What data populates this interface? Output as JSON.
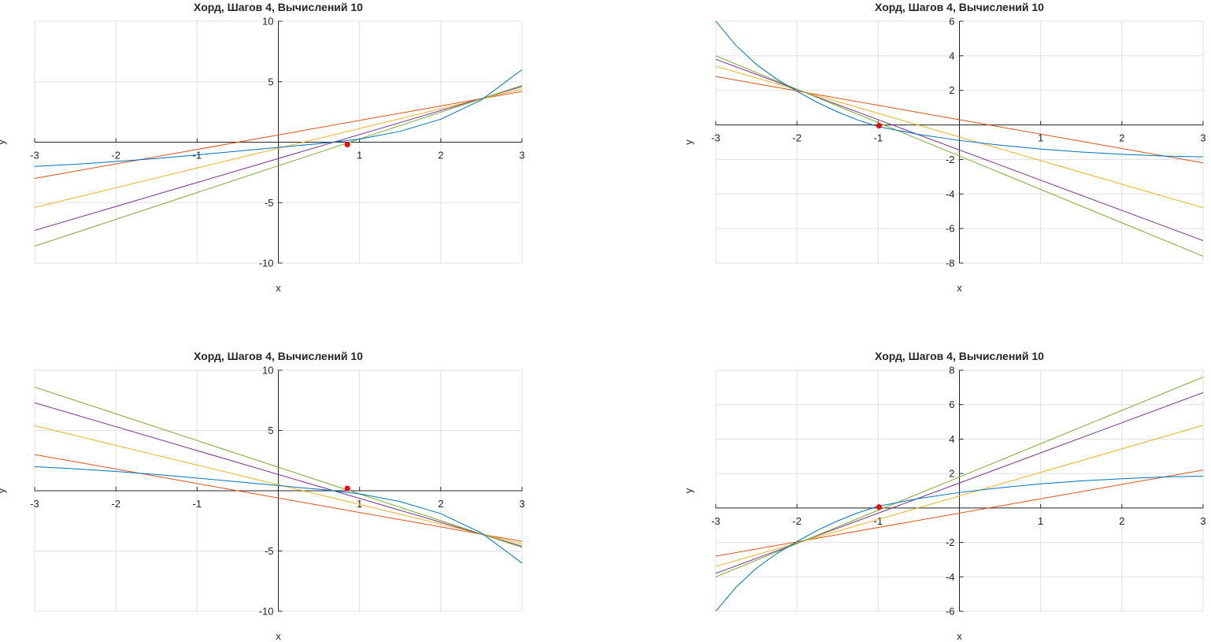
{
  "colors": {
    "curve": "#0072BD",
    "chord1": "#D95319",
    "chord2": "#EDB120",
    "chord3": "#7E2F8E",
    "chord4": "#77AC30",
    "root": "#ff0000",
    "grid": "#e0e0e0",
    "axis": "#262626"
  },
  "chart_data": [
    {
      "type": "line",
      "title": "Хорд, Шагов 4, Вычислений 10",
      "xlabel": "x",
      "ylabel": "y",
      "xlim": [
        -3,
        3
      ],
      "ylim": [
        -10,
        10
      ],
      "grid": true,
      "xticks": [
        -3,
        -2,
        -1,
        1,
        2,
        3
      ],
      "xtick_labels": [
        "-3",
        "-2",
        "-1",
        "1",
        "2",
        "3"
      ],
      "yticks": [
        -10,
        -5,
        5,
        10
      ],
      "ytick_labels": [
        "-10",
        "-5",
        "5",
        "10"
      ],
      "curve": {
        "x": [
          -3,
          -2.5,
          -2,
          -1.5,
          -1,
          -0.5,
          0,
          0.5,
          1,
          1.5,
          2,
          2.5,
          3
        ],
        "y": [
          -2.0,
          -1.82,
          -1.6,
          -1.35,
          -1.05,
          -0.74,
          -0.43,
          -0.12,
          0.25,
          0.9,
          1.9,
          3.5,
          6.0
        ]
      },
      "chords": [
        {
          "x": [
            -3,
            3
          ],
          "y": [
            -3.0,
            4.2
          ]
        },
        {
          "x": [
            -3,
            3
          ],
          "y": [
            -5.4,
            4.4
          ]
        },
        {
          "x": [
            -3,
            3
          ],
          "y": [
            -7.3,
            4.6
          ]
        },
        {
          "x": [
            -3,
            3
          ],
          "y": [
            -8.6,
            4.7
          ]
        }
      ],
      "root": {
        "x": 0.85,
        "y": -0.2
      }
    },
    {
      "type": "line",
      "title": "Хорд, Шагов 4, Вычислений 10",
      "xlabel": "x",
      "ylabel": "y",
      "xlim": [
        -3,
        3
      ],
      "ylim": [
        -8,
        6
      ],
      "grid": true,
      "xticks": [
        -3,
        -2,
        -1,
        1,
        2,
        3
      ],
      "xtick_labels": [
        "-3",
        "-2",
        "-1",
        "1",
        "2",
        "3"
      ],
      "yticks": [
        -8,
        -6,
        -4,
        -2,
        2,
        4,
        6
      ],
      "ytick_labels": [
        "-8",
        "-6",
        "-4",
        "-2",
        "2",
        "4",
        "6"
      ],
      "curve": {
        "x": [
          -3,
          -2.75,
          -2.5,
          -2.25,
          -2,
          -1.75,
          -1.5,
          -1.25,
          -1,
          -0.5,
          0,
          0.5,
          1,
          1.5,
          2,
          2.5,
          3
        ],
        "y": [
          6.0,
          4.6,
          3.5,
          2.65,
          1.95,
          1.3,
          0.75,
          0.28,
          -0.1,
          -0.55,
          -0.9,
          -1.17,
          -1.4,
          -1.57,
          -1.7,
          -1.8,
          -1.85
        ]
      },
      "chords": [
        {
          "x": [
            -3,
            3
          ],
          "y": [
            2.8,
            -2.2
          ]
        },
        {
          "x": [
            -3,
            3
          ],
          "y": [
            3.4,
            -4.8
          ]
        },
        {
          "x": [
            -3,
            3
          ],
          "y": [
            3.8,
            -6.7
          ]
        },
        {
          "x": [
            -3,
            3
          ],
          "y": [
            4.0,
            -7.6
          ]
        }
      ],
      "root": {
        "x": -0.99,
        "y": -0.05
      }
    },
    {
      "type": "line",
      "title": "Хорд, Шагов 4, Вычислений 10",
      "xlabel": "x",
      "ylabel": "y",
      "xlim": [
        -3,
        3
      ],
      "ylim": [
        -10,
        10
      ],
      "grid": true,
      "xticks": [
        -3,
        -2,
        -1,
        1,
        2,
        3
      ],
      "xtick_labels": [
        "-3",
        "-2",
        "-1",
        "1",
        "2",
        "3"
      ],
      "yticks": [
        -10,
        -5,
        5,
        10
      ],
      "ytick_labels": [
        "-10",
        "-5",
        "5",
        "10"
      ],
      "curve": {
        "x": [
          -3,
          -2.5,
          -2,
          -1.5,
          -1,
          -0.5,
          0,
          0.5,
          1,
          1.5,
          2,
          2.5,
          3
        ],
        "y": [
          2.0,
          1.82,
          1.6,
          1.35,
          1.05,
          0.74,
          0.43,
          0.12,
          -0.25,
          -0.9,
          -1.9,
          -3.5,
          -6.0
        ]
      },
      "chords": [
        {
          "x": [
            -3,
            3
          ],
          "y": [
            3.0,
            -4.2
          ]
        },
        {
          "x": [
            -3,
            3
          ],
          "y": [
            5.4,
            -4.4
          ]
        },
        {
          "x": [
            -3,
            3
          ],
          "y": [
            7.3,
            -4.6
          ]
        },
        {
          "x": [
            -3,
            3
          ],
          "y": [
            8.6,
            -4.7
          ]
        }
      ],
      "root": {
        "x": 0.85,
        "y": 0.2
      }
    },
    {
      "type": "line",
      "title": "Хорд, Шагов 4, Вычислений 10",
      "xlabel": "x",
      "ylabel": "y",
      "xlim": [
        -3,
        3
      ],
      "ylim": [
        -6,
        8
      ],
      "grid": true,
      "xticks": [
        -3,
        -2,
        -1,
        1,
        2,
        3
      ],
      "xtick_labels": [
        "-3",
        "-2",
        "-1",
        "1",
        "2",
        "3"
      ],
      "yticks": [
        -6,
        -4,
        -2,
        2,
        4,
        6,
        8
      ],
      "ytick_labels": [
        "-6",
        "-4",
        "-2",
        "2",
        "4",
        "6",
        "8"
      ],
      "curve": {
        "x": [
          -3,
          -2.75,
          -2.5,
          -2.25,
          -2,
          -1.75,
          -1.5,
          -1.25,
          -1,
          -0.5,
          0,
          0.5,
          1,
          1.5,
          2,
          2.5,
          3
        ],
        "y": [
          -6.0,
          -4.6,
          -3.5,
          -2.65,
          -1.95,
          -1.3,
          -0.75,
          -0.28,
          0.1,
          0.55,
          0.9,
          1.17,
          1.4,
          1.57,
          1.7,
          1.8,
          1.85
        ]
      },
      "chords": [
        {
          "x": [
            -3,
            3
          ],
          "y": [
            -2.8,
            2.2
          ]
        },
        {
          "x": [
            -3,
            3
          ],
          "y": [
            -3.4,
            4.8
          ]
        },
        {
          "x": [
            -3,
            3
          ],
          "y": [
            -3.8,
            6.7
          ]
        },
        {
          "x": [
            -3,
            3
          ],
          "y": [
            -4.0,
            7.6
          ]
        }
      ],
      "root": {
        "x": -0.99,
        "y": 0.05
      }
    }
  ]
}
